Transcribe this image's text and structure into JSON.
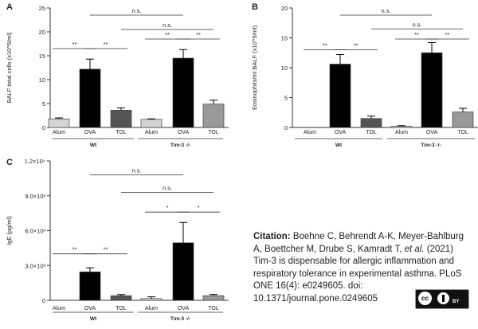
{
  "chart_data": [
    {
      "panel": "A",
      "type": "bar",
      "ylabel": "BALF total cells (x10^5/ml)",
      "ylim": [
        0,
        25
      ],
      "yticks": [
        "0",
        "5",
        "10",
        "15",
        "20",
        "25"
      ],
      "categories": [
        "Alum",
        "OVA",
        "TOL",
        "Alum",
        "OVA",
        "TOL"
      ],
      "groups": [
        "Wt",
        "Tim-3 -/-"
      ],
      "values": [
        1.8,
        12.2,
        3.6,
        1.7,
        14.5,
        4.9
      ],
      "errors": [
        0.2,
        2.1,
        0.5,
        0.1,
        1.8,
        0.8
      ],
      "colors": [
        "#d3d3d3",
        "#000000",
        "#555555",
        "#d3d3d3",
        "#000000",
        "#999999"
      ],
      "significance": [
        {
          "from": 0,
          "to": 1,
          "label": "**",
          "y": 16.5
        },
        {
          "from": 1,
          "to": 2,
          "label": "**",
          "y": 16.5
        },
        {
          "from": 3,
          "to": 4,
          "label": "**",
          "y": 18.5
        },
        {
          "from": 4,
          "to": 5,
          "label": "**",
          "y": 18.5
        },
        {
          "from": 1,
          "to": 4,
          "label": "n.s.",
          "y": 23.5
        },
        {
          "from": 2,
          "to": 5,
          "label": "n.s.",
          "y": 20.5
        }
      ]
    },
    {
      "panel": "B",
      "type": "bar",
      "ylabel": "Eosinophils/ml BALF (x10^5/ml)",
      "ylim": [
        0,
        20
      ],
      "yticks": [
        "0",
        "5",
        "10",
        "15",
        "20"
      ],
      "categories": [
        "Alum",
        "OVA",
        "TOL",
        "Alum",
        "OVA",
        "TOL"
      ],
      "groups": [
        "Wt",
        "Tim-3 -/-"
      ],
      "values": [
        0,
        10.6,
        1.5,
        0.2,
        12.5,
        2.6
      ],
      "errors": [
        0,
        1.6,
        0.4,
        0.1,
        1.7,
        0.6
      ],
      "colors": [
        "#d3d3d3",
        "#000000",
        "#555555",
        "#d3d3d3",
        "#000000",
        "#999999"
      ],
      "significance": [
        {
          "from": 0,
          "to": 1,
          "label": "**",
          "y": 13
        },
        {
          "from": 1,
          "to": 2,
          "label": "**",
          "y": 13
        },
        {
          "from": 3,
          "to": 4,
          "label": "**",
          "y": 14.8
        },
        {
          "from": 4,
          "to": 5,
          "label": "**",
          "y": 14.8
        },
        {
          "from": 1,
          "to": 4,
          "label": "n.s.",
          "y": 18.8
        },
        {
          "from": 2,
          "to": 5,
          "label": "n.s.",
          "y": 16.5
        }
      ]
    },
    {
      "panel": "C",
      "type": "bar",
      "ylabel": "IgE (pg/ml)",
      "ylim": [
        0,
        12000
      ],
      "yticks": [
        "0",
        "3.0×10³",
        "6.0×10³",
        "9.0×10³",
        "1.2×10⁴"
      ],
      "categories": [
        "Alum",
        "OVA",
        "TOL",
        "Alum",
        "OVA",
        "TOL"
      ],
      "groups": [
        "Wt",
        "Tim-3 -/-"
      ],
      "values": [
        0,
        2450,
        400,
        150,
        4950,
        400
      ],
      "errors": [
        0,
        350,
        100,
        150,
        1750,
        100
      ],
      "colors": [
        "#d3d3d3",
        "#000000",
        "#555555",
        "#d3d3d3",
        "#000000",
        "#999999"
      ],
      "significance": [
        {
          "from": 0,
          "to": 1,
          "label": "**",
          "y": 4000
        },
        {
          "from": 1,
          "to": 2,
          "label": "**",
          "y": 4000
        },
        {
          "from": 3,
          "to": 4,
          "label": "*",
          "y": 7600
        },
        {
          "from": 4,
          "to": 5,
          "label": "*",
          "y": 7600
        },
        {
          "from": 1,
          "to": 4,
          "label": "n.s.",
          "y": 10800
        },
        {
          "from": 2,
          "to": 5,
          "label": "n.s.",
          "y": 9300
        }
      ]
    }
  ],
  "citation": {
    "label": "Citation:",
    "body": "Boehne C, Behrendt A-K, Meyer-Bahlburg A, Boettcher M, Drube S, Kamradt T,",
    "etal": "et al.",
    "rest": "(2021) Tim-3 is dispensable for allergic inflammation and respiratory tolerance in experimental asthma. PLoS ONE 16(4): e0249605. doi: 10.1371/journal.pone.0249605"
  },
  "license": {
    "cc": "cc",
    "by": "BY"
  }
}
